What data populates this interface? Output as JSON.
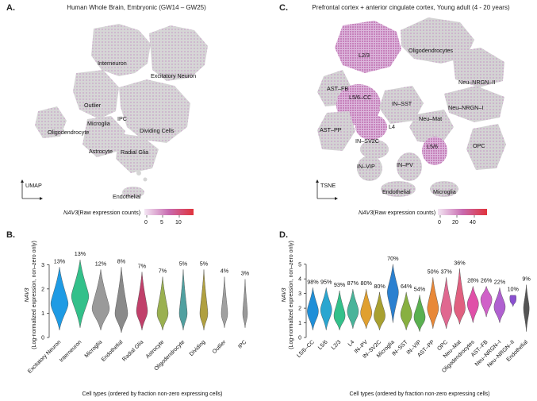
{
  "panels": {
    "A": {
      "letter": "A.",
      "title": "Human Whole Brain, Embryonic (GW14 – GW25)",
      "axis_name": "UMAP",
      "legend_gene": "NAV3",
      "legend_text": "(Raw expression counts)",
      "legend_ticks": [
        "0",
        "5",
        "10"
      ],
      "clusters": [
        "Interneuron",
        "Excitatory Neuron",
        "Outlier",
        "IPC",
        "Microglia",
        "Oligodendrocyte",
        "Dividing Cells",
        "Astrocyte",
        "Radial Glia",
        "Endothelial"
      ]
    },
    "C": {
      "letter": "C.",
      "title": "Prefrontal cortex + anterior cingulate cortex, Young adult (4 - 20 years)",
      "axis_name": "TSNE",
      "legend_gene": "NAV3",
      "legend_text": "(Raw expression counts)",
      "legend_ticks": [
        "0",
        "20",
        "40"
      ],
      "clusters": [
        "L2/3",
        "Oligodendrocytes",
        "AST–FB",
        "L5/6–CC",
        "IN–SST",
        "Neu–NRGN–II",
        "Neu–NRGN–I",
        "Neu–Mat",
        "L4",
        "AST–PP",
        "IN–SV2C",
        "L5/6",
        "OPC",
        "IN–PV",
        "IN–VIP",
        "Endothelial",
        "Microglia"
      ]
    }
  },
  "colors": {
    "cluster_gray": "#d4d4d4",
    "expr_low": "#e8cde8",
    "expr_mid": "#c86bb0",
    "expr_high": "#e0333c"
  },
  "chart_data": [
    {
      "panel": "B.",
      "type": "violin",
      "title": "",
      "xlabel": "Cell types (ordered by fraction non-zero expressing cells)",
      "ylabel_gene": "NAV3",
      "ylabel": "(Log-normalized expression, non–zero only)",
      "ylim": [
        0,
        3.5
      ],
      "yticks": [
        0,
        1,
        2,
        3
      ],
      "categories": [
        "Excitatory Neuron",
        "Interneuron",
        "Microglia",
        "Endothelial",
        "Radial Glia",
        "Astrocyte",
        "Oligodendrocyte",
        "Dividing",
        "Outlier",
        "IPC"
      ],
      "percent_labels": [
        "13%",
        "13%",
        "12%",
        "8%",
        "7%",
        "7%",
        "5%",
        "5%",
        "4%",
        "3%"
      ],
      "medians": [
        1.4,
        1.7,
        1.2,
        1.0,
        1.1,
        1.0,
        1.0,
        1.0,
        1.0,
        1.0
      ],
      "min": [
        0.3,
        0.4,
        0.3,
        0.2,
        0.3,
        0.3,
        0.3,
        0.3,
        0.4,
        0.4
      ],
      "max": [
        2.9,
        3.2,
        2.8,
        2.9,
        2.7,
        2.5,
        2.8,
        2.8,
        2.5,
        2.4
      ],
      "colors": [
        "#1e9be4",
        "#33c08a",
        "#9a9a9a",
        "#8a8a8a",
        "#c0406a",
        "#9ab050",
        "#50a0a0",
        "#b0a040",
        "#a0a0a0",
        "#9a9a9a"
      ]
    },
    {
      "panel": "D.",
      "type": "violin",
      "title": "",
      "xlabel": "Cell types (ordered by fraction non-zero expressing cells)",
      "ylabel_gene": "NAV3",
      "ylabel": "(Log-normalized expression, non–zero only)",
      "ylim": [
        0,
        5.8
      ],
      "yticks": [
        0,
        1,
        2,
        3,
        4,
        5
      ],
      "categories": [
        "L5/6–CC",
        "L5/6",
        "L2/3",
        "L4",
        "IN–PV",
        "IN–SV2C",
        "Microglia",
        "IN–SST",
        "IN–VIP",
        "AST–PP",
        "OPC",
        "Neu–Mat",
        "Oligodendrocytes",
        "AST–FB",
        "Neu–NRGN–I",
        "Neu–NRGN–II",
        "Endothelial"
      ],
      "percent_labels": [
        "98%",
        "95%",
        "93%",
        "87%",
        "80%",
        "80%",
        "70%",
        "64%",
        "54%",
        "50%",
        "37%",
        "36%",
        "28%",
        "26%",
        "22%",
        "10%",
        "9%"
      ],
      "medians": [
        1.8,
        1.9,
        1.5,
        1.8,
        1.7,
        1.5,
        3.1,
        1.6,
        1.4,
        2.0,
        1.9,
        2.0,
        2.3,
        2.6,
        2.1,
        2.7,
        2.0
      ],
      "min": [
        0.5,
        0.5,
        0.5,
        0.6,
        0.6,
        0.5,
        1.0,
        0.5,
        0.4,
        0.6,
        0.6,
        0.9,
        1.0,
        1.4,
        1.0,
        2.1,
        0.4
      ],
      "max": [
        3.4,
        3.4,
        3.2,
        3.3,
        3.3,
        3.1,
        5.0,
        3.1,
        2.9,
        4.1,
        4.1,
        4.7,
        3.5,
        3.5,
        3.4,
        2.9,
        3.6
      ],
      "colors": [
        "#1f8fd8",
        "#2aa6d0",
        "#33c08a",
        "#48b49a",
        "#e0a030",
        "#a8a030",
        "#2a80d0",
        "#88b040",
        "#5ab050",
        "#e88838",
        "#e06890",
        "#e06080",
        "#e050a8",
        "#d060c8",
        "#b060d0",
        "#8a50d0",
        "#555555"
      ]
    }
  ]
}
